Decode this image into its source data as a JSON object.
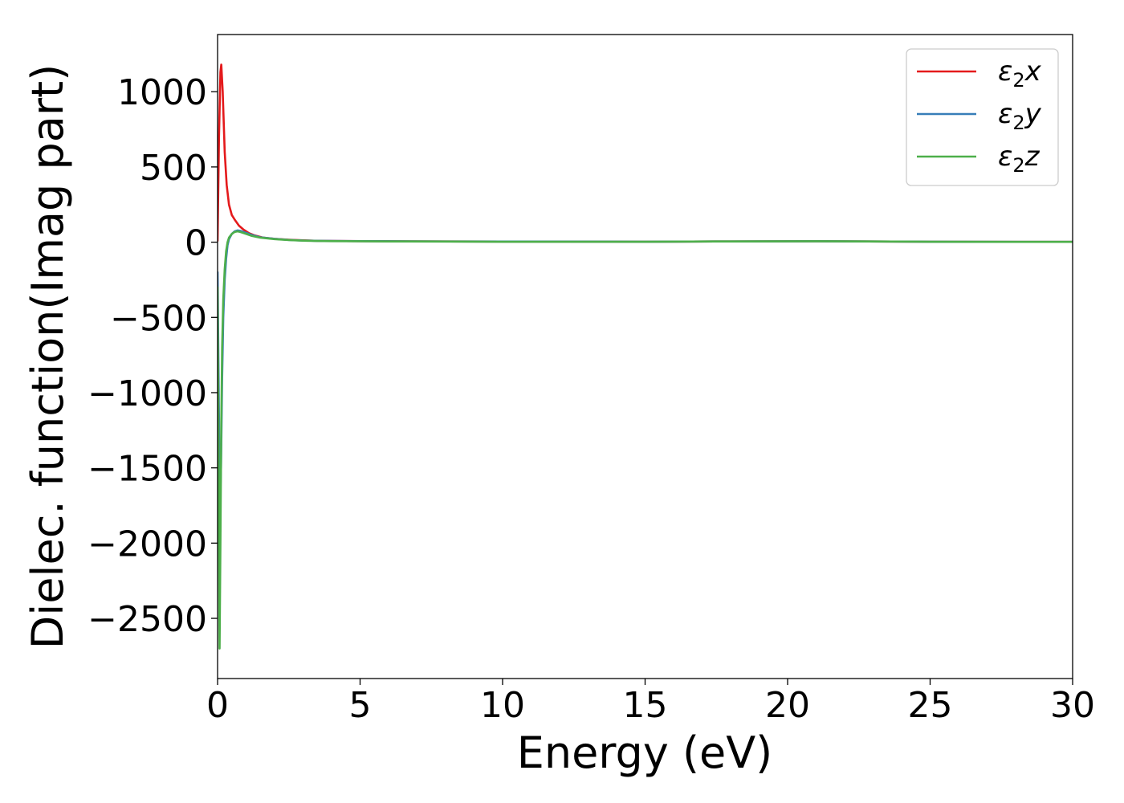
{
  "chart_data": {
    "type": "line",
    "title": "",
    "xlabel": "Energy (eV)",
    "ylabel": "Dielec. function(Imag part)",
    "xlim": [
      0,
      30
    ],
    "ylim": [
      -2900,
      1380
    ],
    "xticks": [
      0,
      5,
      10,
      15,
      20,
      25,
      30
    ],
    "xtick_labels": [
      "0",
      "5",
      "10",
      "15",
      "20",
      "25",
      "30"
    ],
    "yticks": [
      1000,
      500,
      0,
      -500,
      -1000,
      -1500,
      -2000,
      -2500
    ],
    "ytick_labels": [
      "1000",
      "500",
      "0",
      "−500",
      "−1000",
      "−1500",
      "−2000",
      "−2500"
    ],
    "grid": false,
    "legend_position": "top-right",
    "series": [
      {
        "name": "ε₂x",
        "legend_main": "ε",
        "legend_sub": "2",
        "legend_tail": "x",
        "color": "#e41a1c",
        "x": [
          0.0,
          0.05,
          0.1,
          0.13,
          0.18,
          0.25,
          0.32,
          0.4,
          0.5,
          0.6,
          0.75,
          0.9,
          1.1,
          1.3,
          1.6,
          2.0,
          2.5,
          3.0,
          3.5,
          4.0,
          5.0,
          6.0,
          8.0,
          10.0,
          15.0,
          18.0,
          21.0,
          25.0,
          30.0
        ],
        "y": [
          10,
          700,
          1130,
          1180,
          1000,
          600,
          380,
          250,
          180,
          150,
          110,
          85,
          60,
          45,
          30,
          22,
          16,
          12,
          9,
          8,
          7,
          6,
          5,
          4,
          3,
          5,
          6,
          3,
          2
        ]
      },
      {
        "name": "ε₂y",
        "legend_main": "ε",
        "legend_sub": "2",
        "legend_tail": "y",
        "color": "#377eb8",
        "x": [
          0.0,
          0.04,
          0.08,
          0.12,
          0.16,
          0.2,
          0.25,
          0.3,
          0.35,
          0.4,
          0.5,
          0.6,
          0.7,
          0.8,
          1.0,
          1.2,
          1.5,
          2.0,
          2.5,
          3.0,
          3.5,
          4.0,
          5.0,
          6.0,
          8.0,
          10.0,
          15.0,
          18.0,
          21.0,
          25.0,
          30.0
        ],
        "y": [
          -200,
          -1000,
          -1790,
          -1500,
          -900,
          -500,
          -250,
          -110,
          -20,
          20,
          55,
          72,
          78,
          75,
          62,
          48,
          32,
          22,
          15,
          11,
          9,
          8,
          7,
          6,
          5,
          4,
          3,
          5,
          6,
          3,
          2
        ]
      },
      {
        "name": "ε₂z",
        "legend_main": "ε",
        "legend_sub": "2",
        "legend_tail": "z",
        "color": "#4daf4a",
        "x": [
          0.0,
          0.04,
          0.07,
          0.1,
          0.13,
          0.16,
          0.2,
          0.25,
          0.3,
          0.35,
          0.4,
          0.5,
          0.6,
          0.7,
          0.8,
          1.0,
          1.2,
          1.5,
          2.0,
          2.5,
          3.0,
          3.5,
          4.0,
          5.0,
          6.0,
          8.0,
          10.0,
          15.0,
          18.0,
          21.0,
          25.0,
          30.0
        ],
        "y": [
          -300,
          -1500,
          -2700,
          -2000,
          -1200,
          -700,
          -380,
          -180,
          -60,
          0,
          30,
          55,
          68,
          72,
          68,
          55,
          42,
          30,
          20,
          14,
          10,
          8,
          7,
          6,
          5,
          4,
          3,
          3,
          5,
          6,
          3,
          2
        ]
      }
    ]
  }
}
